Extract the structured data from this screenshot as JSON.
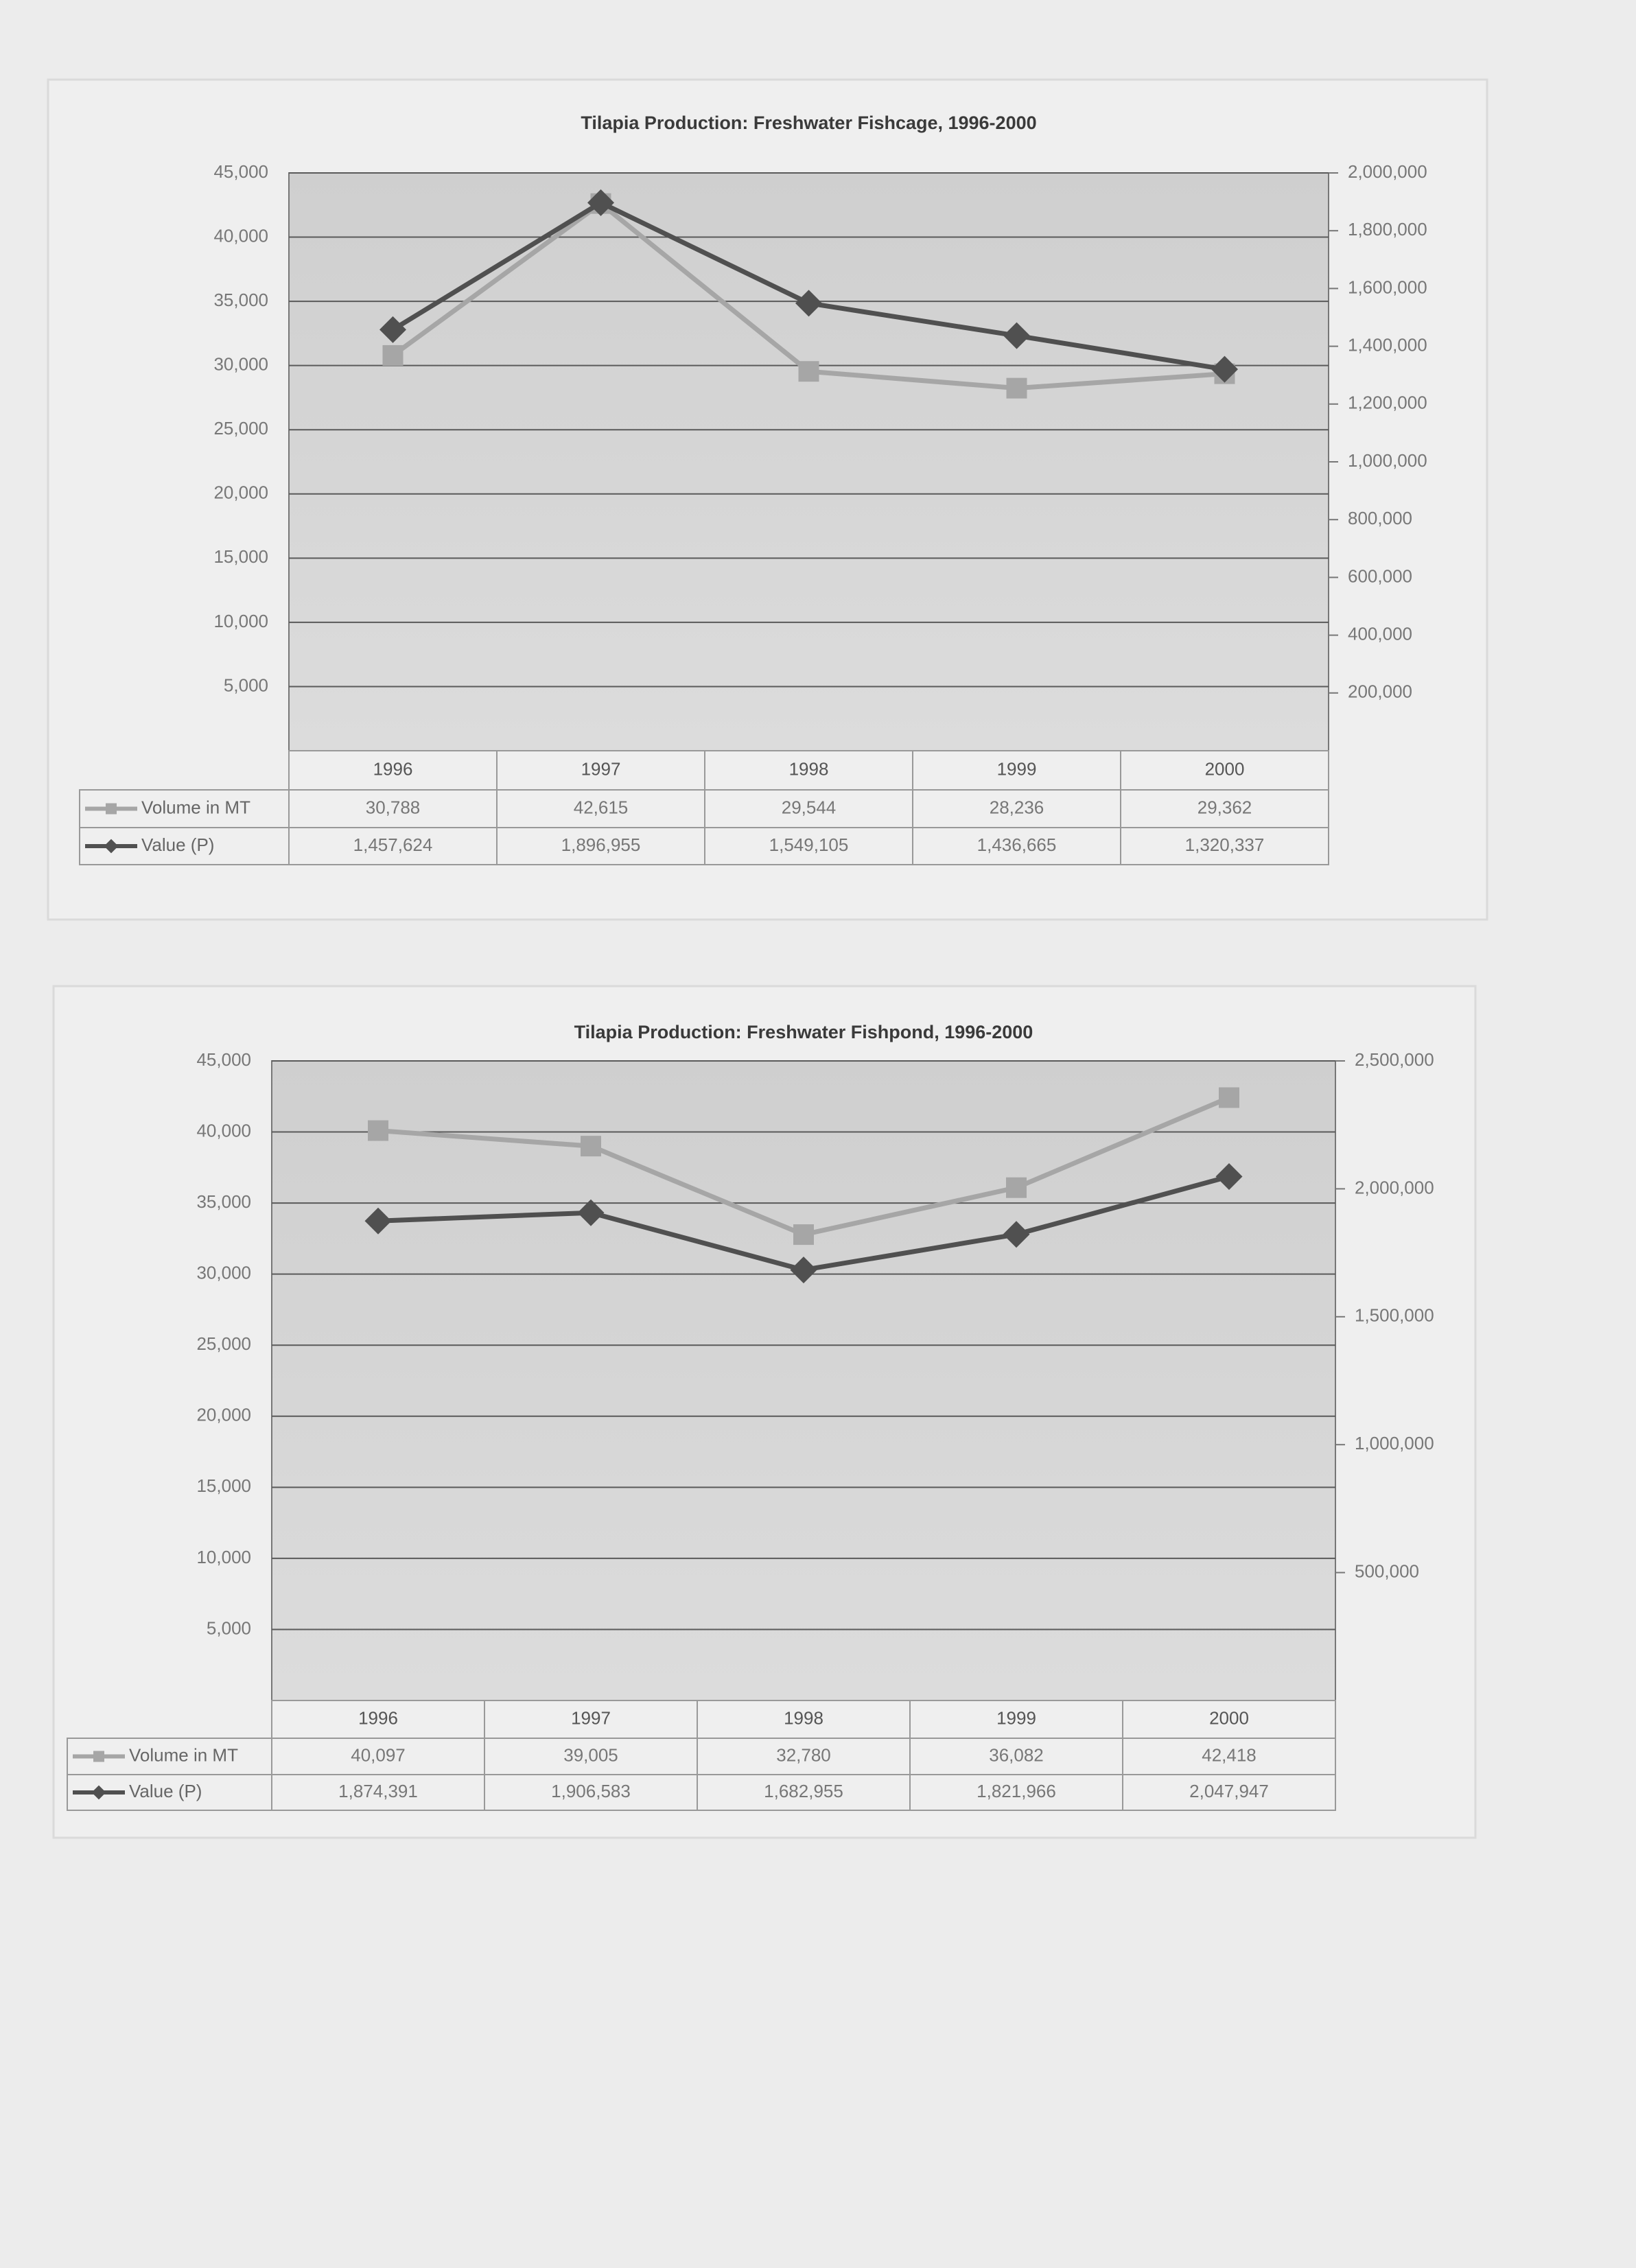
{
  "chart_data": [
    {
      "type": "line",
      "title": "Tilapia Production:  Freshwater Fishcage, 1996-2000",
      "categories": [
        "1996",
        "1997",
        "1998",
        "1999",
        "2000"
      ],
      "series": [
        {
          "name": "Volume in MT",
          "color": "#a6a6a6",
          "marker": "square",
          "values": [
            30788,
            42615,
            29544,
            28236,
            29362
          ],
          "value_labels": [
            "30,788",
            "42,615",
            "29,544",
            "28,236",
            "29,362"
          ]
        },
        {
          "name": "Value (P)",
          "color": "#505050",
          "marker": "diamond",
          "axis": "y2",
          "values": [
            1457624,
            1896955,
            1549105,
            1436665,
            1320337
          ],
          "value_labels": [
            "1,457,624",
            "1,896,955",
            "1,549,105",
            "1,436,665",
            "1,320,337"
          ]
        }
      ],
      "ylim": [
        0,
        45000
      ],
      "yticks": [
        {
          "value": 5000,
          "label": "5,000"
        },
        {
          "value": 10000,
          "label": "10,000"
        },
        {
          "value": 15000,
          "label": "15,000"
        },
        {
          "value": 20000,
          "label": "20,000"
        },
        {
          "value": 25000,
          "label": "25,000"
        },
        {
          "value": 30000,
          "label": "30,000"
        },
        {
          "value": 35000,
          "label": "35,000"
        },
        {
          "value": 40000,
          "label": "40,000"
        },
        {
          "value": 45000,
          "label": "45,000"
        }
      ],
      "y2lim": [
        0,
        2000000
      ],
      "y2ticks": [
        {
          "value": 200000,
          "label": "200,000"
        },
        {
          "value": 400000,
          "label": "400,000"
        },
        {
          "value": 600000,
          "label": "600,000"
        },
        {
          "value": 800000,
          "label": "800,000"
        },
        {
          "value": 1000000,
          "label": "1,000,000"
        },
        {
          "value": 1200000,
          "label": "1,200,000"
        },
        {
          "value": 1400000,
          "label": "1,400,000"
        },
        {
          "value": 1600000,
          "label": "1,600,000"
        },
        {
          "value": 1800000,
          "label": "1,800,000"
        },
        {
          "value": 2000000,
          "label": "2,000,000"
        }
      ],
      "grid": true
    },
    {
      "type": "line",
      "title": "Tilapia Production:  Freshwater Fishpond, 1996-2000",
      "categories": [
        "1996",
        "1997",
        "1998",
        "1999",
        "2000"
      ],
      "series": [
        {
          "name": "Volume in MT",
          "color": "#a6a6a6",
          "marker": "square",
          "values": [
            40097,
            39005,
            32780,
            36082,
            42418
          ],
          "value_labels": [
            "40,097",
            "39,005",
            "32,780",
            "36,082",
            "42,418"
          ]
        },
        {
          "name": "Value (P)",
          "color": "#505050",
          "marker": "diamond",
          "axis": "y2",
          "values": [
            1874391,
            1906583,
            1682955,
            1821966,
            2047947
          ],
          "value_labels": [
            "1,874,391",
            "1,906,583",
            "1,682,955",
            "1,821,966",
            "2,047,947"
          ]
        }
      ],
      "ylim": [
        0,
        45000
      ],
      "yticks": [
        {
          "value": 5000,
          "label": "5,000"
        },
        {
          "value": 10000,
          "label": "10,000"
        },
        {
          "value": 15000,
          "label": "15,000"
        },
        {
          "value": 20000,
          "label": "20,000"
        },
        {
          "value": 25000,
          "label": "25,000"
        },
        {
          "value": 30000,
          "label": "30,000"
        },
        {
          "value": 35000,
          "label": "35,000"
        },
        {
          "value": 40000,
          "label": "40,000"
        },
        {
          "value": 45000,
          "label": "45,000"
        }
      ],
      "y2lim": [
        0,
        2500000
      ],
      "y2ticks": [
        {
          "value": 500000,
          "label": "500,000"
        },
        {
          "value": 1000000,
          "label": "1,000,000"
        },
        {
          "value": 1500000,
          "label": "1,500,000"
        },
        {
          "value": 2000000,
          "label": "2,000,000"
        },
        {
          "value": 2500000,
          "label": "2,500,000"
        }
      ],
      "grid": true
    }
  ]
}
